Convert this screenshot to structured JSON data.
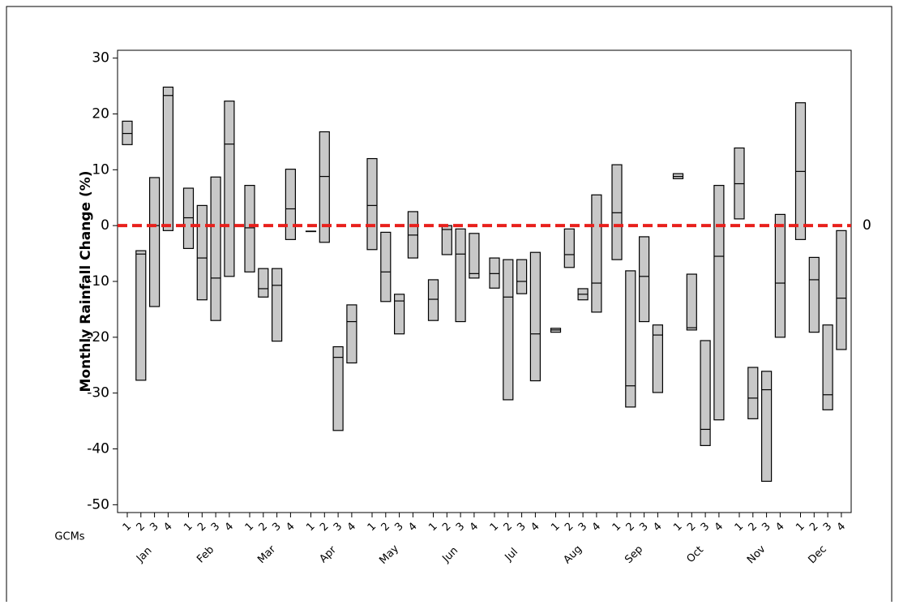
{
  "chart_data": {
    "type": "floating-bar",
    "ylabel": "Monthly Rainfall Change (%)",
    "x_group_label": "GCMs",
    "categories": [
      "Jan",
      "Feb",
      "Mar",
      "Apr",
      "May",
      "Jun",
      "Jul",
      "Aug",
      "Sep",
      "Oct",
      "Nov",
      "Dec"
    ],
    "groups": [
      "1",
      "2",
      "3",
      "4"
    ],
    "high": [
      [
        18.7,
        -4.5,
        8.6,
        24.8
      ],
      [
        6.7,
        3.6,
        8.7,
        22.3
      ],
      [
        7.2,
        -7.7,
        -7.7,
        10.1
      ],
      [
        -1,
        16.8,
        -21.7,
        -14.2
      ],
      [
        12,
        -1.2,
        -12.3,
        2.5
      ],
      [
        -9.7,
        0,
        -0.6,
        -1.4
      ],
      [
        -5.8,
        -6.1,
        -6.1,
        -4.8
      ],
      [
        -18.4,
        -0.6,
        -11.3,
        5.5
      ],
      [
        10.9,
        -8.1,
        -2,
        -17.8
      ],
      [
        9.3,
        -8.7,
        -20.6,
        7.2
      ],
      [
        13.9,
        -25.4,
        -26.1,
        2
      ],
      [
        22,
        -5.7,
        -17.8,
        -0.9
      ]
    ],
    "median": [
      [
        16.5,
        -5.1,
        0,
        23.3
      ],
      [
        1.4,
        -5.8,
        -9.4,
        14.6
      ],
      [
        -0.4,
        -11.3,
        -10.7,
        3
      ],
      [
        -1,
        8.8,
        -23.6,
        -17.2
      ],
      [
        3.6,
        -8.3,
        -13.5,
        -1.7
      ],
      [
        -13.2,
        -0.7,
        -5.1,
        -8.6
      ],
      [
        -8.6,
        -12.8,
        -10,
        -19.4
      ],
      [
        -18.7,
        -5.2,
        -12.3,
        -10.3
      ],
      [
        2.3,
        -28.7,
        -9.1,
        -19.6
      ],
      [
        8.8,
        -18.3,
        -36.5,
        -5.5
      ],
      [
        7.5,
        -30.9,
        -29.4,
        -10.3
      ],
      [
        9.7,
        -9.7,
        -30.3,
        -13
      ]
    ],
    "low": [
      [
        14.5,
        -27.7,
        -14.5,
        -0.9
      ],
      [
        -4.1,
        -13.3,
        -17,
        -9.1
      ],
      [
        -8.3,
        -12.8,
        -20.7,
        -2.5
      ],
      [
        -1,
        -3,
        -36.7,
        -24.6
      ],
      [
        -4.3,
        -13.6,
        -19.4,
        -5.8
      ],
      [
        -17,
        -5.2,
        -17.2,
        -9.4
      ],
      [
        -11.2,
        -31.2,
        -12.2,
        -27.8
      ],
      [
        -19.1,
        -7.5,
        -13.3,
        -15.5
      ],
      [
        -6.1,
        -32.5,
        -17.2,
        -29.9
      ],
      [
        8.4,
        -18.7,
        -39.4,
        -34.8
      ],
      [
        1.2,
        -34.6,
        -45.8,
        -20
      ],
      [
        -2.5,
        -19.1,
        -33,
        -22.2
      ]
    ],
    "ylim": [
      -51.4,
      31.4
    ],
    "yticks": [
      -50,
      -40,
      -30,
      -20,
      -10,
      0,
      10,
      20,
      30
    ],
    "reference_line": 0,
    "reference_color": "#e8201c",
    "box_color": "#c8c8c8"
  }
}
